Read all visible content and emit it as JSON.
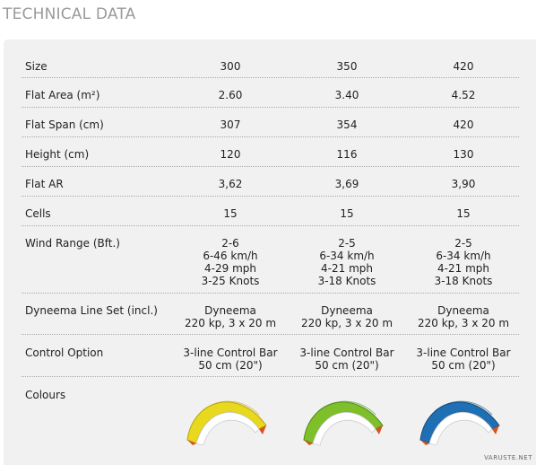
{
  "heading": "TECHNICAL DATA",
  "rows": [
    {
      "label": "Size",
      "values": [
        "300",
        "350",
        "420"
      ]
    },
    {
      "label": "Flat Area (m²)",
      "values": [
        "2.60",
        "3.40",
        "4.52"
      ]
    },
    {
      "label": "Flat Span (cm)",
      "values": [
        "307",
        "354",
        "420"
      ]
    },
    {
      "label": "Height (cm)",
      "values": [
        "120",
        "116",
        "130"
      ]
    },
    {
      "label": "Flat AR",
      "values": [
        "3,62",
        "3,69",
        "3,90"
      ]
    },
    {
      "label": "Cells",
      "values": [
        "15",
        "15",
        "15"
      ]
    },
    {
      "label": "Wind Range (Bft.)",
      "values": [
        "2-6\n6-46 km/h\n4-29 mph\n3-25 Knots",
        "2-5\n6-34 km/h\n4-21 mph\n3-18 Knots",
        "2-5\n6-34 km/h\n4-21 mph\n3-18 Knots"
      ]
    },
    {
      "label": "Dyneema Line Set (incl.)",
      "values": [
        "Dyneema\n220 kp, 3 x 20 m",
        "Dyneema\n220 kp, 3 x 20 m",
        "Dyneema\n220 kp, 3 x 20 m"
      ]
    },
    {
      "label": "Control Option",
      "values": [
        "3-line Control Bar\n50 cm (20\")",
        "3-line Control Bar\n50 cm (20\")",
        "3-line Control Bar\n50 cm (20\")"
      ]
    }
  ],
  "colours_label": "Colours",
  "kites": [
    {
      "name": "yellow-kite",
      "color": "#e8d81e",
      "shade": "#b9a80a"
    },
    {
      "name": "green-kite",
      "color": "#7fbf2a",
      "shade": "#4e8f18"
    },
    {
      "name": "blue-kite",
      "color": "#1f6fb4",
      "shade": "#144c80"
    }
  ],
  "watermark": "VARUSTE.NET"
}
